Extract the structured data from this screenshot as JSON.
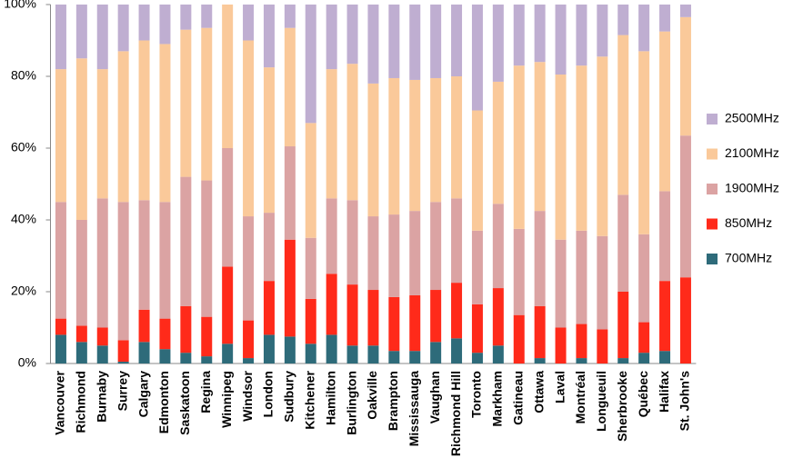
{
  "chart_data": {
    "type": "stacked_bar_100",
    "categories": [
      "Vancouver",
      "Richmond",
      "Burnaby",
      "Surrey",
      "Calgary",
      "Edmonton",
      "Saskatoon",
      "Regina",
      "Winnipeg",
      "Windsor",
      "London",
      "Sudbury",
      "Kitchener",
      "Hamilton",
      "Burlington",
      "Oakville",
      "Brampton",
      "Mississauga",
      "Vaughan",
      "Richmond Hill",
      "Toronto",
      "Markham",
      "Gatineau",
      "Ottawa",
      "Laval",
      "Montréal",
      "Longueuil",
      "Sherbrooke",
      "Québec",
      "Halifax",
      "St. John's"
    ],
    "series": [
      {
        "name": "700MHz",
        "color": "#2e6b7a",
        "values": [
          8,
          6,
          5,
          0.5,
          6,
          4,
          3,
          2,
          5.5,
          1.5,
          8,
          7.5,
          5.5,
          8,
          5,
          5,
          3.5,
          3.5,
          6,
          7,
          3,
          5,
          0,
          1.5,
          0,
          1.5,
          0,
          1.5,
          3,
          3.5,
          0
        ]
      },
      {
        "name": "850MHz",
        "color": "#ff2a1a",
        "values": [
          4.5,
          4.5,
          5,
          6,
          9,
          8.5,
          13,
          11,
          21.5,
          10.5,
          15,
          27,
          12.5,
          17,
          17,
          15.5,
          15,
          15.5,
          14.5,
          15.5,
          13.5,
          16,
          13.5,
          14.5,
          10,
          9.5,
          9.5,
          18.5,
          8.5,
          19.5,
          24
        ]
      },
      {
        "name": "1900MHz",
        "color": "#dba3a3",
        "values": [
          32.5,
          29.5,
          36,
          38.5,
          30.5,
          32.5,
          36,
          38,
          33,
          29,
          19,
          26,
          17,
          21,
          23.5,
          20.5,
          23,
          23.5,
          24.5,
          23.5,
          20.5,
          23.5,
          24,
          26.5,
          24.5,
          26,
          26,
          27,
          24.5,
          25,
          39.5
        ]
      },
      {
        "name": "2100MHz",
        "color": "#fac99a",
        "values": [
          37,
          45,
          36,
          42,
          44.5,
          44,
          41,
          42.5,
          40,
          49,
          40.5,
          33,
          32,
          36,
          38,
          37,
          38,
          36.5,
          34.5,
          34,
          33.5,
          34,
          45.5,
          41.5,
          46,
          46,
          50,
          44.5,
          51,
          44.5,
          33
        ]
      },
      {
        "name": "2500MHz",
        "color": "#bfaed1",
        "values": [
          18,
          15,
          18,
          13,
          10,
          11,
          7,
          6.5,
          0,
          10,
          17.5,
          6.5,
          33,
          18,
          16.5,
          22,
          20.5,
          21,
          20.5,
          20,
          29.5,
          21.5,
          17,
          16,
          19.5,
          17,
          14.5,
          8.5,
          13,
          7.5,
          3.5
        ]
      }
    ],
    "ylim": [
      0,
      100
    ],
    "yticks": [
      {
        "value": 0,
        "label": "0%"
      },
      {
        "value": 20,
        "label": "20%"
      },
      {
        "value": 40,
        "label": "40%"
      },
      {
        "value": 60,
        "label": "60%"
      },
      {
        "value": 80,
        "label": "80%"
      },
      {
        "value": 100,
        "label": "100%"
      }
    ],
    "legend": "right"
  }
}
